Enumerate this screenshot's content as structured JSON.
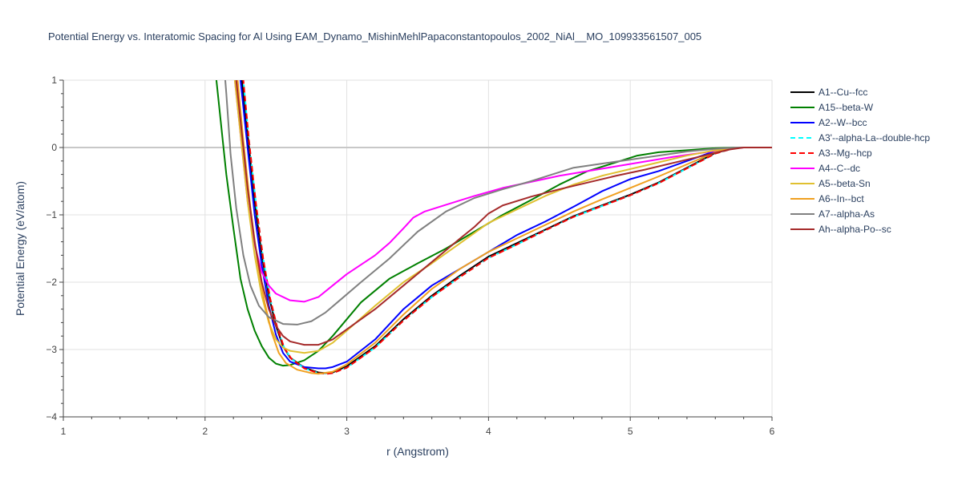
{
  "chart_data": {
    "type": "line",
    "title": "Potential Energy vs. Interatomic Spacing for Al Using EAM_Dynamo_MishinMehlPapaconstantopoulos_2002_NiAl__MO_109933561507_005",
    "xlabel": "r (Angstrom)",
    "ylabel": "Potential Energy (eV/atom)",
    "xlim": [
      1,
      6
    ],
    "ylim": [
      -4,
      1
    ],
    "x_ticks": [
      1,
      2,
      3,
      4,
      5,
      6
    ],
    "y_ticks": [
      1,
      0,
      -1,
      -2,
      -3,
      -4
    ],
    "y_tick_labels": [
      "1",
      "0",
      "−1",
      "−2",
      "−3",
      "−4"
    ],
    "grid": true,
    "legend_position": "right",
    "series": [
      {
        "name": "A1--Cu--fcc",
        "color": "#000000",
        "dash": "solid",
        "points": [
          [
            2.23,
            2.6
          ],
          [
            2.26,
            1.0
          ],
          [
            2.3,
            0.2
          ],
          [
            2.35,
            -0.8
          ],
          [
            2.4,
            -1.6
          ],
          [
            2.45,
            -2.2
          ],
          [
            2.5,
            -2.65
          ],
          [
            2.55,
            -2.95
          ],
          [
            2.6,
            -3.12
          ],
          [
            2.7,
            -3.27
          ],
          [
            2.8,
            -3.34
          ],
          [
            2.85,
            -3.35
          ],
          [
            2.9,
            -3.34
          ],
          [
            3.0,
            -3.25
          ],
          [
            3.2,
            -2.95
          ],
          [
            3.4,
            -2.55
          ],
          [
            3.6,
            -2.2
          ],
          [
            3.8,
            -1.9
          ],
          [
            4.0,
            -1.62
          ],
          [
            4.2,
            -1.42
          ],
          [
            4.4,
            -1.22
          ],
          [
            4.6,
            -1.02
          ],
          [
            4.8,
            -0.86
          ],
          [
            5.0,
            -0.7
          ],
          [
            5.2,
            -0.52
          ],
          [
            5.4,
            -0.3
          ],
          [
            5.6,
            -0.08
          ],
          [
            5.75,
            0.0
          ],
          [
            6.0,
            0.0
          ]
        ]
      },
      {
        "name": "A15--beta-W",
        "color": "#008000",
        "dash": "solid",
        "points": [
          [
            2.05,
            1.6
          ],
          [
            2.1,
            0.6
          ],
          [
            2.15,
            -0.4
          ],
          [
            2.2,
            -1.2
          ],
          [
            2.25,
            -1.95
          ],
          [
            2.3,
            -2.4
          ],
          [
            2.35,
            -2.72
          ],
          [
            2.4,
            -2.95
          ],
          [
            2.45,
            -3.12
          ],
          [
            2.5,
            -3.21
          ],
          [
            2.55,
            -3.24
          ],
          [
            2.6,
            -3.23
          ],
          [
            2.7,
            -3.16
          ],
          [
            2.8,
            -3.02
          ],
          [
            2.9,
            -2.8
          ],
          [
            3.0,
            -2.55
          ],
          [
            3.1,
            -2.3
          ],
          [
            3.3,
            -1.95
          ],
          [
            3.5,
            -1.72
          ],
          [
            3.7,
            -1.5
          ],
          [
            3.9,
            -1.25
          ],
          [
            4.1,
            -1.0
          ],
          [
            4.3,
            -0.78
          ],
          [
            4.5,
            -0.55
          ],
          [
            4.7,
            -0.35
          ],
          [
            4.9,
            -0.22
          ],
          [
            5.05,
            -0.12
          ],
          [
            5.2,
            -0.07
          ],
          [
            5.4,
            -0.04
          ],
          [
            5.6,
            -0.01
          ],
          [
            5.75,
            0.0
          ],
          [
            6.0,
            0.0
          ]
        ]
      },
      {
        "name": "A2--W--bcc",
        "color": "#0000ff",
        "dash": "solid",
        "points": [
          [
            2.22,
            2.6
          ],
          [
            2.25,
            1.0
          ],
          [
            2.3,
            0.0
          ],
          [
            2.35,
            -1.0
          ],
          [
            2.4,
            -1.75
          ],
          [
            2.45,
            -2.35
          ],
          [
            2.5,
            -2.78
          ],
          [
            2.55,
            -3.05
          ],
          [
            2.6,
            -3.18
          ],
          [
            2.7,
            -3.26
          ],
          [
            2.8,
            -3.28
          ],
          [
            2.85,
            -3.28
          ],
          [
            2.9,
            -3.26
          ],
          [
            3.0,
            -3.18
          ],
          [
            3.2,
            -2.85
          ],
          [
            3.4,
            -2.4
          ],
          [
            3.6,
            -2.05
          ],
          [
            3.8,
            -1.8
          ],
          [
            4.0,
            -1.55
          ],
          [
            4.2,
            -1.3
          ],
          [
            4.4,
            -1.1
          ],
          [
            4.6,
            -0.88
          ],
          [
            4.8,
            -0.65
          ],
          [
            5.0,
            -0.47
          ],
          [
            5.2,
            -0.35
          ],
          [
            5.4,
            -0.2
          ],
          [
            5.6,
            -0.05
          ],
          [
            5.75,
            0.0
          ],
          [
            6.0,
            0.0
          ]
        ]
      },
      {
        "name": "A3'--alpha-La--double-hcp",
        "color": "#00ffff",
        "dash": "6,4",
        "points": [
          [
            2.24,
            2.6
          ],
          [
            2.27,
            1.0
          ],
          [
            2.31,
            0.1
          ],
          [
            2.36,
            -0.85
          ],
          [
            2.41,
            -1.65
          ],
          [
            2.46,
            -2.25
          ],
          [
            2.51,
            -2.68
          ],
          [
            2.56,
            -2.98
          ],
          [
            2.61,
            -3.14
          ],
          [
            2.7,
            -3.28
          ],
          [
            2.8,
            -3.35
          ],
          [
            2.86,
            -3.36
          ],
          [
            2.9,
            -3.35
          ],
          [
            3.0,
            -3.27
          ],
          [
            3.2,
            -2.97
          ],
          [
            3.4,
            -2.57
          ],
          [
            3.6,
            -2.22
          ],
          [
            3.8,
            -1.92
          ],
          [
            4.0,
            -1.64
          ],
          [
            4.2,
            -1.44
          ],
          [
            4.4,
            -1.23
          ],
          [
            4.6,
            -1.03
          ],
          [
            4.8,
            -0.87
          ],
          [
            5.0,
            -0.71
          ],
          [
            5.2,
            -0.53
          ],
          [
            5.4,
            -0.31
          ],
          [
            5.6,
            -0.09
          ],
          [
            5.75,
            0.0
          ],
          [
            6.0,
            0.0
          ]
        ]
      },
      {
        "name": "A3--Mg--hcp",
        "color": "#ff0000",
        "dash": "7,4",
        "points": [
          [
            2.24,
            2.6
          ],
          [
            2.27,
            1.0
          ],
          [
            2.31,
            0.1
          ],
          [
            2.36,
            -0.85
          ],
          [
            2.41,
            -1.65
          ],
          [
            2.46,
            -2.25
          ],
          [
            2.51,
            -2.68
          ],
          [
            2.56,
            -2.98
          ],
          [
            2.61,
            -3.14
          ],
          [
            2.7,
            -3.28
          ],
          [
            2.8,
            -3.35
          ],
          [
            2.86,
            -3.36
          ],
          [
            2.9,
            -3.35
          ],
          [
            3.0,
            -3.27
          ],
          [
            3.2,
            -2.97
          ],
          [
            3.4,
            -2.57
          ],
          [
            3.6,
            -2.22
          ],
          [
            3.8,
            -1.92
          ],
          [
            4.0,
            -1.64
          ],
          [
            4.2,
            -1.44
          ],
          [
            4.4,
            -1.23
          ],
          [
            4.6,
            -1.03
          ],
          [
            4.8,
            -0.87
          ],
          [
            5.0,
            -0.71
          ],
          [
            5.2,
            -0.53
          ],
          [
            5.4,
            -0.31
          ],
          [
            5.6,
            -0.09
          ],
          [
            5.75,
            0.0
          ],
          [
            6.0,
            0.0
          ]
        ]
      },
      {
        "name": "A4--C--dc",
        "color": "#ff00ff",
        "dash": "solid",
        "points": [
          [
            2.18,
            1.6
          ],
          [
            2.22,
            0.8
          ],
          [
            2.26,
            0.0
          ],
          [
            2.3,
            -0.8
          ],
          [
            2.35,
            -1.45
          ],
          [
            2.4,
            -1.85
          ],
          [
            2.45,
            -2.05
          ],
          [
            2.5,
            -2.17
          ],
          [
            2.6,
            -2.27
          ],
          [
            2.7,
            -2.29
          ],
          [
            2.8,
            -2.22
          ],
          [
            2.9,
            -2.05
          ],
          [
            3.0,
            -1.88
          ],
          [
            3.2,
            -1.6
          ],
          [
            3.3,
            -1.42
          ],
          [
            3.4,
            -1.2
          ],
          [
            3.47,
            -1.04
          ],
          [
            3.55,
            -0.95
          ],
          [
            3.7,
            -0.85
          ],
          [
            3.9,
            -0.72
          ],
          [
            4.1,
            -0.6
          ],
          [
            4.3,
            -0.51
          ],
          [
            4.5,
            -0.42
          ],
          [
            4.7,
            -0.35
          ],
          [
            4.9,
            -0.28
          ],
          [
            5.1,
            -0.21
          ],
          [
            5.3,
            -0.14
          ],
          [
            5.5,
            -0.08
          ],
          [
            5.7,
            -0.02
          ],
          [
            5.8,
            0.0
          ],
          [
            6.0,
            0.0
          ]
        ]
      },
      {
        "name": "A5--beta-Sn",
        "color": "#e0c030",
        "dash": "solid",
        "points": [
          [
            2.18,
            1.6
          ],
          [
            2.21,
            1.0
          ],
          [
            2.25,
            0.2
          ],
          [
            2.3,
            -0.8
          ],
          [
            2.35,
            -1.6
          ],
          [
            2.4,
            -2.2
          ],
          [
            2.45,
            -2.6
          ],
          [
            2.5,
            -2.85
          ],
          [
            2.55,
            -2.97
          ],
          [
            2.6,
            -3.02
          ],
          [
            2.7,
            -3.05
          ],
          [
            2.8,
            -3.02
          ],
          [
            2.9,
            -2.9
          ],
          [
            3.0,
            -2.72
          ],
          [
            3.2,
            -2.35
          ],
          [
            3.4,
            -2.0
          ],
          [
            3.6,
            -1.72
          ],
          [
            3.8,
            -1.42
          ],
          [
            4.0,
            -1.12
          ],
          [
            4.2,
            -0.92
          ],
          [
            4.4,
            -0.72
          ],
          [
            4.6,
            -0.55
          ],
          [
            4.8,
            -0.42
          ],
          [
            5.0,
            -0.32
          ],
          [
            5.2,
            -0.22
          ],
          [
            5.4,
            -0.12
          ],
          [
            5.6,
            -0.04
          ],
          [
            5.75,
            0.0
          ],
          [
            6.0,
            0.0
          ]
        ]
      },
      {
        "name": "A6--In--bct",
        "color": "#f0a020",
        "dash": "solid",
        "points": [
          [
            2.2,
            1.6
          ],
          [
            2.23,
            1.0
          ],
          [
            2.27,
            0.1
          ],
          [
            2.32,
            -0.9
          ],
          [
            2.37,
            -1.7
          ],
          [
            2.42,
            -2.3
          ],
          [
            2.47,
            -2.75
          ],
          [
            2.52,
            -3.05
          ],
          [
            2.57,
            -3.2
          ],
          [
            2.65,
            -3.3
          ],
          [
            2.75,
            -3.35
          ],
          [
            2.8,
            -3.36
          ],
          [
            2.9,
            -3.33
          ],
          [
            3.0,
            -3.22
          ],
          [
            3.2,
            -2.9
          ],
          [
            3.4,
            -2.48
          ],
          [
            3.6,
            -2.1
          ],
          [
            3.8,
            -1.8
          ],
          [
            4.0,
            -1.55
          ],
          [
            4.2,
            -1.35
          ],
          [
            4.4,
            -1.15
          ],
          [
            4.6,
            -0.95
          ],
          [
            4.8,
            -0.77
          ],
          [
            5.0,
            -0.6
          ],
          [
            5.2,
            -0.43
          ],
          [
            5.4,
            -0.25
          ],
          [
            5.6,
            -0.07
          ],
          [
            5.75,
            0.0
          ],
          [
            6.0,
            0.0
          ]
        ]
      },
      {
        "name": "A7--alpha-As",
        "color": "#808080",
        "dash": "solid",
        "points": [
          [
            2.12,
            1.6
          ],
          [
            2.15,
            0.8
          ],
          [
            2.18,
            -0.1
          ],
          [
            2.22,
            -0.9
          ],
          [
            2.27,
            -1.6
          ],
          [
            2.32,
            -2.05
          ],
          [
            2.38,
            -2.35
          ],
          [
            2.45,
            -2.52
          ],
          [
            2.55,
            -2.62
          ],
          [
            2.65,
            -2.63
          ],
          [
            2.75,
            -2.58
          ],
          [
            2.85,
            -2.45
          ],
          [
            2.95,
            -2.27
          ],
          [
            3.1,
            -2.0
          ],
          [
            3.3,
            -1.65
          ],
          [
            3.5,
            -1.25
          ],
          [
            3.7,
            -0.95
          ],
          [
            3.9,
            -0.75
          ],
          [
            4.1,
            -0.62
          ],
          [
            4.3,
            -0.5
          ],
          [
            4.45,
            -0.4
          ],
          [
            4.6,
            -0.3
          ],
          [
            4.8,
            -0.24
          ],
          [
            5.0,
            -0.18
          ],
          [
            5.2,
            -0.12
          ],
          [
            5.4,
            -0.06
          ],
          [
            5.6,
            -0.02
          ],
          [
            5.75,
            0.0
          ],
          [
            6.0,
            0.0
          ]
        ]
      },
      {
        "name": "Ah--alpha-Po--sc",
        "color": "#a52a2a",
        "dash": "solid",
        "points": [
          [
            2.19,
            1.6
          ],
          [
            2.22,
            1.0
          ],
          [
            2.26,
            0.2
          ],
          [
            2.3,
            -0.6
          ],
          [
            2.35,
            -1.4
          ],
          [
            2.4,
            -2.0
          ],
          [
            2.45,
            -2.4
          ],
          [
            2.5,
            -2.65
          ],
          [
            2.55,
            -2.8
          ],
          [
            2.6,
            -2.88
          ],
          [
            2.7,
            -2.93
          ],
          [
            2.8,
            -2.93
          ],
          [
            2.9,
            -2.85
          ],
          [
            3.0,
            -2.7
          ],
          [
            3.2,
            -2.4
          ],
          [
            3.4,
            -2.05
          ],
          [
            3.6,
            -1.7
          ],
          [
            3.8,
            -1.35
          ],
          [
            3.9,
            -1.18
          ],
          [
            4.0,
            -0.98
          ],
          [
            4.1,
            -0.86
          ],
          [
            4.3,
            -0.73
          ],
          [
            4.5,
            -0.62
          ],
          [
            4.7,
            -0.52
          ],
          [
            4.9,
            -0.42
          ],
          [
            5.1,
            -0.33
          ],
          [
            5.3,
            -0.23
          ],
          [
            5.5,
            -0.13
          ],
          [
            5.7,
            -0.03
          ],
          [
            5.8,
            0.0
          ],
          [
            6.0,
            0.0
          ]
        ]
      }
    ]
  }
}
